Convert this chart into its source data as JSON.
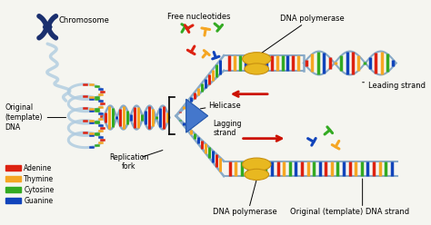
{
  "background_color": "#f5f5f0",
  "labels": {
    "chromosome": "Chromosome",
    "original_dna": "Original\n(template)\nDNA",
    "replication_fork": "Replication\nfork",
    "free_nucleotides": "Free nucleotides",
    "dna_polymerase_top": "DNA polymerase",
    "leading_strand": "Leading strand",
    "helicase": "Helicase",
    "lagging_strand": "Lagging\nstrand",
    "dna_polymerase_bottom": "DNA polymerase",
    "original_template": "Original (template) DNA strand"
  },
  "legend": {
    "Adenine": "#dd2211",
    "Thymine": "#f5a623",
    "Cytosine": "#33aa22",
    "Guanine": "#1144bb"
  },
  "colors": {
    "red": "#dd2211",
    "orange": "#f5a623",
    "green": "#33aa22",
    "blue": "#1144bb",
    "light_blue": "#b0cce0",
    "strand_blue": "#88aac8",
    "gold": "#e8b820",
    "gold2": "#c89010",
    "dark_blue": "#1a2f6e",
    "helicase_blue": "#4477cc",
    "arrow_red": "#cc1100",
    "nuc_gray": "#8899aa"
  },
  "figsize": [
    4.74,
    2.48
  ],
  "dpi": 100
}
